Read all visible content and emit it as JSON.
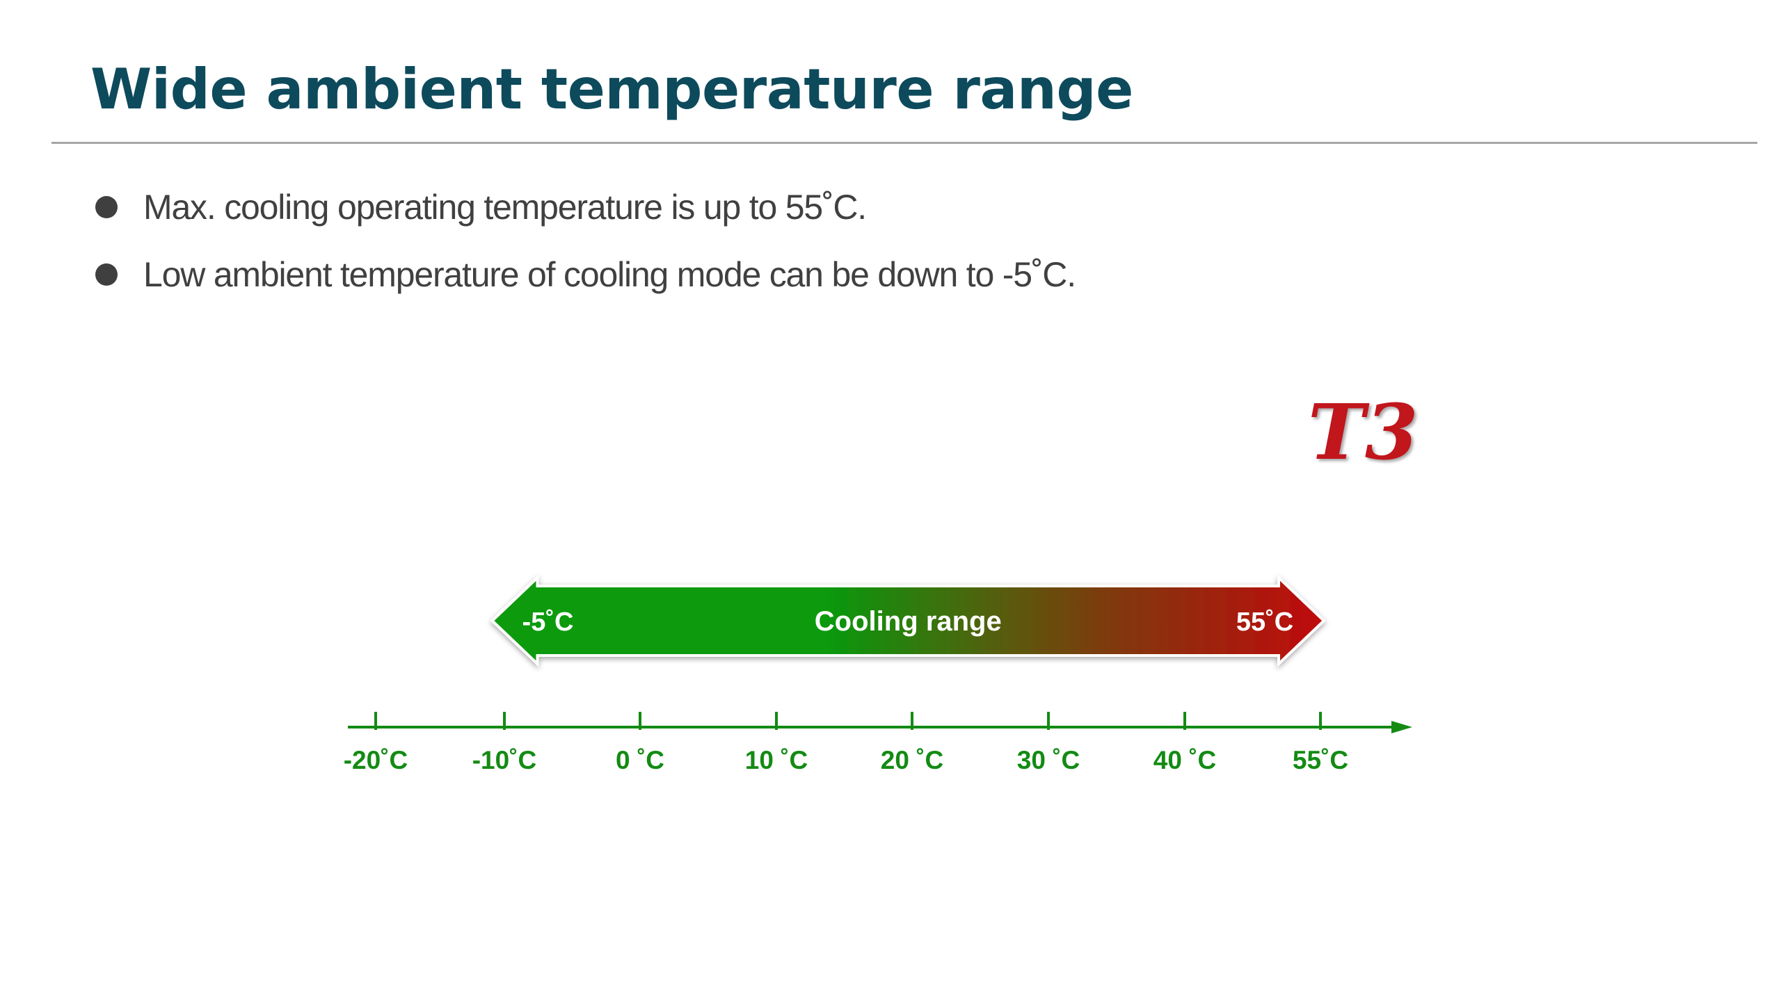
{
  "title": "Wide ambient temperature range",
  "bullets": [
    "Max. cooling operating temperature is up to 55˚C.",
    "Low ambient temperature of cooling mode can be down to -5˚C."
  ],
  "badge": "T3",
  "range_arrow": {
    "label": "Cooling range",
    "min_value": -5,
    "max_value": 55,
    "min_label": "-5˚C",
    "max_label": "55˚C",
    "start_color": "#079a07",
    "end_color": "#c00a0a"
  },
  "axis": {
    "color": "#138b13",
    "ticks": [
      {
        "value": -20,
        "label": "-20˚C"
      },
      {
        "value": -10,
        "label": "-10˚C"
      },
      {
        "value": 0,
        "label": "0 ˚C"
      },
      {
        "value": 10,
        "label": "10 ˚C"
      },
      {
        "value": 20,
        "label": "20 ˚C"
      },
      {
        "value": 30,
        "label": "30 ˚C"
      },
      {
        "value": 40,
        "label": "40 ˚C"
      },
      {
        "value": 55,
        "label": "55˚C"
      }
    ]
  },
  "colors": {
    "title": "#0d4a5c",
    "badge": "#c0141c",
    "bullet": "#404040"
  }
}
